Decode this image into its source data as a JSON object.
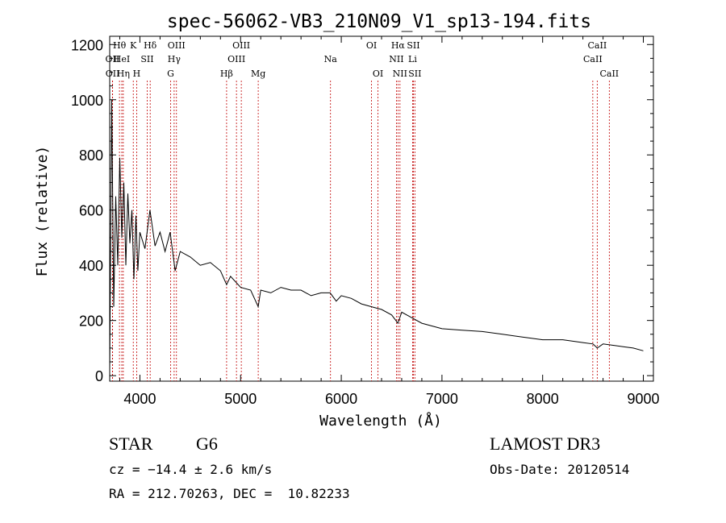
{
  "chart_data": {
    "type": "line",
    "title": "spec-56062-VB3_210N09_V1_sp13-194.fits",
    "xlabel": "Wavelength (Å)",
    "ylabel": "Flux (relative)",
    "xlim": [
      3700,
      9100
    ],
    "ylim": [
      -20,
      1230
    ],
    "xticks": [
      4000,
      5000,
      6000,
      7000,
      8000,
      9000
    ],
    "yticks": [
      0,
      200,
      400,
      600,
      800,
      1000,
      1200
    ],
    "series": [
      {
        "name": "flux",
        "x": [
          3700,
          3720,
          3740,
          3760,
          3780,
          3800,
          3820,
          3840,
          3860,
          3880,
          3900,
          3920,
          3940,
          3960,
          3980,
          4000,
          4050,
          4100,
          4150,
          4200,
          4250,
          4300,
          4350,
          4400,
          4500,
          4600,
          4700,
          4800,
          4861,
          4900,
          5000,
          5100,
          5175,
          5200,
          5300,
          5400,
          5500,
          5600,
          5700,
          5800,
          5890,
          5950,
          6000,
          6100,
          6200,
          6300,
          6400,
          6500,
          6563,
          6600,
          6700,
          6800,
          6900,
          7000,
          7200,
          7400,
          7600,
          7800,
          8000,
          8200,
          8400,
          8500,
          8542,
          8600,
          8700,
          8800,
          8900,
          9000
        ],
        "y": [
          20,
          1000,
          250,
          650,
          400,
          790,
          500,
          700,
          400,
          660,
          480,
          600,
          350,
          580,
          380,
          520,
          460,
          600,
          470,
          520,
          450,
          520,
          380,
          450,
          430,
          400,
          410,
          380,
          330,
          360,
          320,
          310,
          250,
          310,
          300,
          320,
          310,
          310,
          290,
          300,
          300,
          270,
          290,
          280,
          260,
          250,
          240,
          220,
          190,
          230,
          210,
          190,
          180,
          170,
          165,
          160,
          150,
          140,
          130,
          130,
          120,
          115,
          100,
          115,
          110,
          105,
          100,
          90
        ]
      }
    ],
    "lines": [
      {
        "label": "Hθ",
        "x": 3797,
        "row": 0
      },
      {
        "label": "OII",
        "x": 3727,
        "row": 1
      },
      {
        "label": "OII",
        "x": 3729,
        "row": 2
      },
      {
        "label": "HeI",
        "x": 3820,
        "row": 1
      },
      {
        "label": "Hη",
        "x": 3835,
        "row": 2
      },
      {
        "label": "K",
        "x": 3934,
        "row": 0
      },
      {
        "label": "SII",
        "x": 4072,
        "row": 1
      },
      {
        "label": "H",
        "x": 3968,
        "row": 2
      },
      {
        "label": "Hδ",
        "x": 4102,
        "row": 0
      },
      {
        "label": "OIII",
        "x": 4363,
        "row": 0
      },
      {
        "label": "Hγ",
        "x": 4340,
        "row": 1
      },
      {
        "label": "G",
        "x": 4305,
        "row": 2
      },
      {
        "label": "Hβ",
        "x": 4861,
        "row": 2
      },
      {
        "label": "OIII",
        "x": 5007,
        "row": 0
      },
      {
        "label": "OIII",
        "x": 4959,
        "row": 1
      },
      {
        "label": "Mg",
        "x": 5175,
        "row": 2
      },
      {
        "label": "Na",
        "x": 5893,
        "row": 1
      },
      {
        "label": "OI",
        "x": 6300,
        "row": 0
      },
      {
        "label": "OI",
        "x": 6364,
        "row": 2
      },
      {
        "label": "Hα",
        "x": 6563,
        "row": 0
      },
      {
        "label": "SII",
        "x": 6716,
        "row": 0
      },
      {
        "label": "NII",
        "x": 6548,
        "row": 1
      },
      {
        "label": "Li",
        "x": 6708,
        "row": 1
      },
      {
        "label": "NII",
        "x": 6583,
        "row": 2
      },
      {
        "label": "SII",
        "x": 6731,
        "row": 2
      },
      {
        "label": "CaII",
        "x": 8542,
        "row": 0
      },
      {
        "label": "CaII",
        "x": 8498,
        "row": 1
      },
      {
        "label": "CaII",
        "x": 8662,
        "row": 2
      }
    ]
  },
  "footer": {
    "object_class": "STAR",
    "subclass": "G6",
    "survey": "LAMOST DR3",
    "cz": "cz = −14.4 ± 2.6 km/s",
    "obs_date": "Obs-Date: 20120514",
    "coords": "RA = 212.70263, DEC =  10.82233"
  }
}
